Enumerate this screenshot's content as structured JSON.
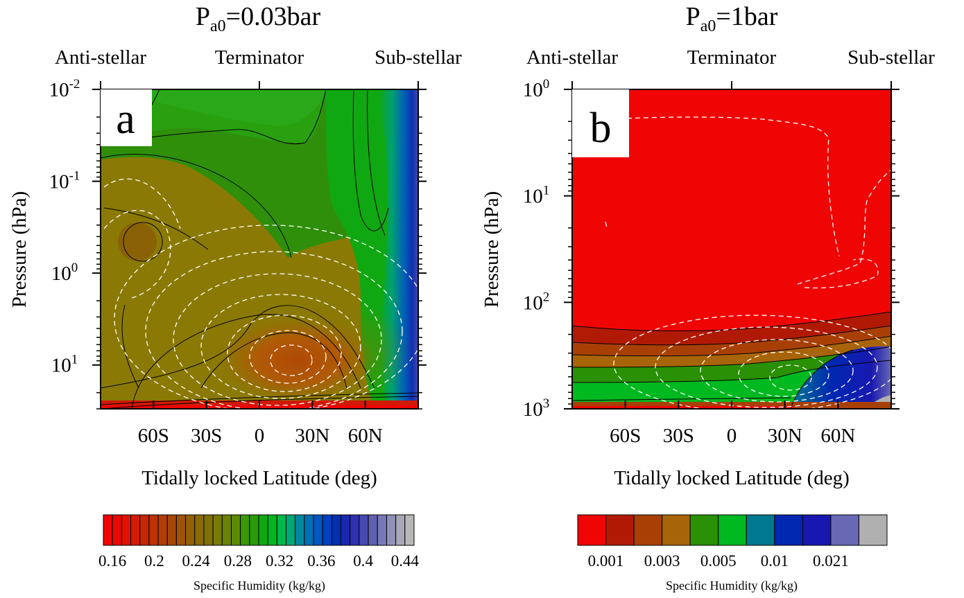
{
  "chart_data": [
    {
      "type": "contour",
      "panel": "a",
      "title": {
        "main": "P",
        "sub": "a0",
        "rest": "=0.03bar"
      },
      "top_labels": [
        "Anti-stellar",
        "Terminator",
        "Sub-stellar"
      ],
      "xlabel": "Tidally locked Latitude (deg)",
      "ylabel": "Pressure (hPa)",
      "x_range": [
        -90,
        90
      ],
      "x_ticks": [
        {
          "value": -60,
          "label": "60S"
        },
        {
          "value": -30,
          "label": "30S"
        },
        {
          "value": 0,
          "label": "0"
        },
        {
          "value": 30,
          "label": "30N"
        },
        {
          "value": 60,
          "label": "60N"
        }
      ],
      "y_scale": "log",
      "y_reversed": true,
      "y_range": [
        0.01,
        30
      ],
      "y_ticks": [
        {
          "value": 0.01,
          "base": "10",
          "exp": "-2"
        },
        {
          "value": 0.1,
          "base": "10",
          "exp": "-1"
        },
        {
          "value": 1,
          "base": "10",
          "exp": "0"
        },
        {
          "value": 10,
          "base": "10",
          "exp": "1"
        }
      ],
      "colorbar": {
        "label": "Specific Humidity (kg/kg)",
        "tick_labels": [
          "0.16",
          "0.2",
          "0.24",
          "0.28",
          "0.32",
          "0.36",
          "0.4",
          "0.44"
        ],
        "colors": [
          "#f00505",
          "#e90a05",
          "#df1205",
          "#d31b05",
          "#c72605",
          "#bc3205",
          "#b13d05",
          "#a64705",
          "#9e5405",
          "#946005",
          "#8a6a05",
          "#807005",
          "#787a05",
          "#6a8205",
          "#5c8a05",
          "#3a9805",
          "#2a9a05",
          "#10a810",
          "#04b420",
          "#00b848",
          "#00a878",
          "#0088a0",
          "#0070b4",
          "#0058c0",
          "#0040c0",
          "#0030b0",
          "#1828b0",
          "#3030b0",
          "#4848b0",
          "#6060b0",
          "#7878b8",
          "#9090b8",
          "#a8a8b8",
          "#b8b8b8"
        ]
      }
    },
    {
      "type": "contour",
      "panel": "b",
      "title": {
        "main": "P",
        "sub": "a0",
        "rest": "=1bar"
      },
      "top_labels": [
        "Anti-stellar",
        "Terminator",
        "Sub-stellar"
      ],
      "xlabel": "Tidally locked Latitude (deg)",
      "ylabel": "Pressure (hPa)",
      "x_range": [
        -90,
        90
      ],
      "x_ticks": [
        {
          "value": -60,
          "label": "60S"
        },
        {
          "value": -30,
          "label": "30S"
        },
        {
          "value": 0,
          "label": "0"
        },
        {
          "value": 30,
          "label": "30N"
        },
        {
          "value": 60,
          "label": "60N"
        }
      ],
      "y_scale": "log",
      "y_reversed": true,
      "y_range": [
        1,
        1000
      ],
      "y_ticks": [
        {
          "value": 1,
          "base": "10",
          "exp": "0"
        },
        {
          "value": 10,
          "base": "10",
          "exp": "1"
        },
        {
          "value": 100,
          "base": "10",
          "exp": "2"
        },
        {
          "value": 1000,
          "base": "10",
          "exp": "3"
        }
      ],
      "colorbar": {
        "label": "Specific Humidity (kg/kg)",
        "tick_labels": [
          "0.001",
          "0.003",
          "0.005",
          "0.01",
          "0.021"
        ],
        "colors": [
          "#f00505",
          "#b01a05",
          "#a84006",
          "#a86408",
          "#2a9005",
          "#00b820",
          "#007890",
          "#0028b0",
          "#1818b0",
          "#6868b4",
          "#b0b0b0"
        ]
      }
    }
  ]
}
